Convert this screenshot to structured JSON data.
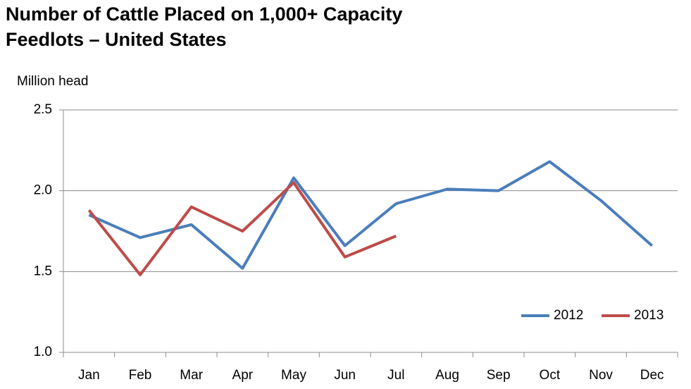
{
  "chart_data": {
    "type": "line",
    "title": [
      "Number of Cattle Placed on 1,000+ Capacity",
      "Feedlots – United States"
    ],
    "y_label": "Million head",
    "categories": [
      "Jan",
      "Feb",
      "Mar",
      "Apr",
      "May",
      "Jun",
      "Jul",
      "Aug",
      "Sep",
      "Oct",
      "Nov",
      "Dec"
    ],
    "series": [
      {
        "name": "2012",
        "color": "#4a7ebb",
        "values": [
          1.85,
          1.71,
          1.79,
          1.52,
          2.08,
          1.66,
          1.92,
          2.01,
          2.0,
          2.18,
          1.94,
          1.66
        ]
      },
      {
        "name": "2013",
        "color": "#be4b48",
        "values": [
          1.88,
          1.48,
          1.9,
          1.75,
          2.05,
          1.59,
          1.72,
          null,
          null,
          null,
          null,
          null
        ]
      }
    ],
    "ylim": [
      1.0,
      2.5
    ],
    "yticks": [
      {
        "value": 1,
        "label": "1.0"
      },
      1.5,
      {
        "value": 2,
        "label": "2.0"
      },
      2.5
    ],
    "grid": true,
    "legend": "lower right"
  }
}
